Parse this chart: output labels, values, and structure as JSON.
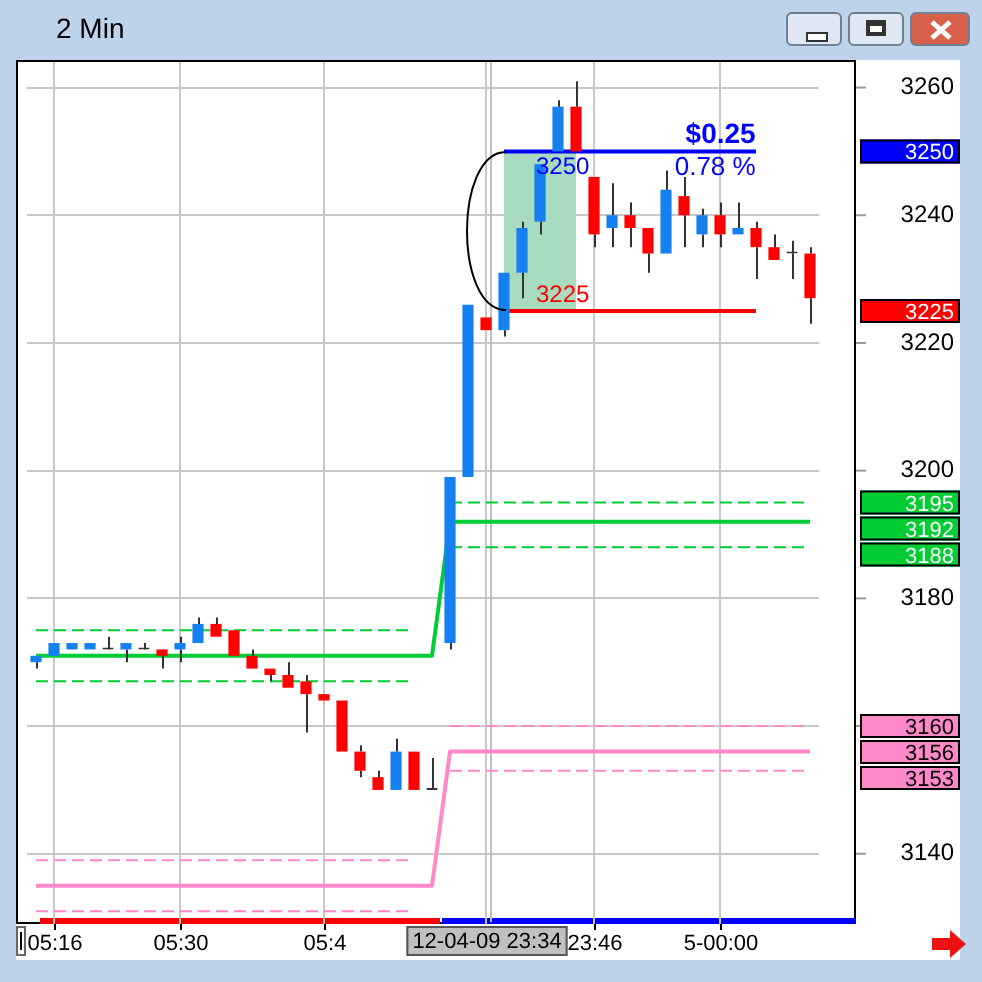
{
  "chart_data": {
    "type": "candlestick",
    "title": "2 Min",
    "categories": [
      null,
      "05:16",
      null,
      null,
      null,
      null,
      null,
      null,
      "05:30",
      null,
      null,
      null,
      null,
      null,
      null,
      null,
      "05:4",
      null,
      null,
      null,
      null,
      null,
      null,
      null,
      null,
      "12-04-09 23:34",
      null,
      null,
      null,
      null,
      null,
      "23:46",
      null,
      null,
      null,
      null,
      null,
      null,
      "5-00:00",
      null,
      null,
      null,
      null,
      null
    ],
    "ohlc": [
      [
        3170,
        3171,
        3169,
        3171
      ],
      [
        3171,
        3173,
        3171,
        3173
      ],
      [
        3172,
        3173,
        3172,
        3173
      ],
      [
        3172,
        3173,
        3172,
        3173
      ],
      [
        3172,
        3174,
        3172,
        3172
      ],
      [
        3172,
        3173,
        3170,
        3173
      ],
      [
        3172,
        3173,
        3172,
        3172
      ],
      [
        3172,
        3172,
        3169,
        3171
      ],
      [
        3172,
        3174,
        3170,
        3173
      ],
      [
        3173,
        3177,
        3173,
        3176
      ],
      [
        3176,
        3177,
        3174,
        3174
      ],
      [
        3175,
        3175,
        3171,
        3171
      ],
      [
        3171,
        3172,
        3169,
        3169
      ],
      [
        3169,
        3169,
        3167,
        3168
      ],
      [
        3168,
        3170,
        3166,
        3166
      ],
      [
        3167,
        3168,
        3159,
        3165
      ],
      [
        3165,
        3165,
        3164,
        3164
      ],
      [
        3164,
        3164,
        3156,
        3156
      ],
      [
        3156,
        3157,
        3152,
        3153
      ],
      [
        3152,
        3153,
        3150,
        3150
      ],
      [
        3150,
        3158,
        3150,
        3156
      ],
      [
        3156,
        3156,
        3150,
        3150
      ],
      [
        3150,
        3155,
        3150,
        3150
      ],
      [
        3173,
        3199,
        3172,
        3199
      ],
      [
        3199,
        3226,
        3199,
        3226
      ],
      [
        3224,
        3224,
        3222,
        3222
      ],
      [
        3222,
        3231,
        3221,
        3231
      ],
      [
        3231,
        3239,
        3227,
        3238
      ],
      [
        3239,
        3248,
        3237,
        3248
      ],
      [
        3250,
        3258,
        3250,
        3257
      ],
      [
        3257,
        3261,
        3250,
        3250
      ],
      [
        3246,
        3246,
        3235,
        3237
      ],
      [
        3238,
        3245,
        3235,
        3240
      ],
      [
        3240,
        3242,
        3235,
        3238
      ],
      [
        3238,
        3238,
        3231,
        3234
      ],
      [
        3234,
        3247,
        3234,
        3244
      ],
      [
        3243,
        3246,
        3235,
        3240
      ],
      [
        3237,
        3241,
        3235,
        3240
      ],
      [
        3240,
        3242,
        3235,
        3237
      ],
      [
        3237,
        3242,
        3237,
        3238
      ],
      [
        3238,
        3239,
        3230,
        3235
      ],
      [
        3235,
        3237,
        3233,
        3233
      ],
      [
        3234,
        3236,
        3230,
        3234
      ],
      [
        3234,
        3235,
        3223,
        3227
      ]
    ],
    "series": [
      {
        "type": "line",
        "color": "#00cc33",
        "line_style": "dashed",
        "values": [
          3175,
          3175,
          3175,
          3175,
          3175,
          3175,
          3175,
          3175,
          3175,
          3175,
          3175,
          3175,
          3175,
          3175,
          3175,
          3175,
          3175,
          3175,
          3175,
          3175,
          3175,
          3175,
          null,
          3195,
          3195,
          3195,
          3195,
          3195,
          3195,
          3195,
          3195,
          3195,
          3195,
          3195,
          3195,
          3195,
          3195,
          3195,
          3195,
          3195,
          3195,
          3195,
          3195,
          3195
        ]
      },
      {
        "type": "line",
        "color": "#00cc33",
        "line_style": "solid",
        "values": [
          3171,
          3171,
          3171,
          3171,
          3171,
          3171,
          3171,
          3171,
          3171,
          3171,
          3171,
          3171,
          3171,
          3171,
          3171,
          3171,
          3171,
          3171,
          3171,
          3171,
          3171,
          3171,
          3171,
          3192,
          3192,
          3192,
          3192,
          3192,
          3192,
          3192,
          3192,
          3192,
          3192,
          3192,
          3192,
          3192,
          3192,
          3192,
          3192,
          3192,
          3192,
          3192,
          3192,
          3192
        ]
      },
      {
        "type": "line",
        "color": "#00cc33",
        "line_style": "dashed",
        "values": [
          3167,
          3167,
          3167,
          3167,
          3167,
          3167,
          3167,
          3167,
          3167,
          3167,
          3167,
          3167,
          3167,
          3167,
          3167,
          3167,
          3167,
          3167,
          3167,
          3167,
          3167,
          3167,
          null,
          3188,
          3188,
          3188,
          3188,
          3188,
          3188,
          3188,
          3188,
          3188,
          3188,
          3188,
          3188,
          3188,
          3188,
          3188,
          3188,
          3188,
          3188,
          3188,
          3188,
          3188
        ]
      },
      {
        "type": "line",
        "color": "#ff88c8",
        "line_style": "dashed",
        "values": [
          3139,
          3139,
          3139,
          3139,
          3139,
          3139,
          3139,
          3139,
          3139,
          3139,
          3139,
          3139,
          3139,
          3139,
          3139,
          3139,
          3139,
          3139,
          3139,
          3139,
          3139,
          3139,
          null,
          3160,
          3160,
          3160,
          3160,
          3160,
          3160,
          3160,
          3160,
          3160,
          3160,
          3160,
          3160,
          3160,
          3160,
          3160,
          3160,
          3160,
          3160,
          3160,
          3160,
          3160
        ]
      },
      {
        "type": "line",
        "color": "#ff88c8",
        "line_style": "solid",
        "values": [
          3135,
          3135,
          3135,
          3135,
          3135,
          3135,
          3135,
          3135,
          3135,
          3135,
          3135,
          3135,
          3135,
          3135,
          3135,
          3135,
          3135,
          3135,
          3135,
          3135,
          3135,
          3135,
          3135,
          3156,
          3156,
          3156,
          3156,
          3156,
          3156,
          3156,
          3156,
          3156,
          3156,
          3156,
          3156,
          3156,
          3156,
          3156,
          3156,
          3156,
          3156,
          3156,
          3156,
          3156
        ]
      },
      {
        "type": "line",
        "color": "#ff88c8",
        "line_style": "dashed",
        "values": [
          3131,
          3131,
          3131,
          3131,
          3131,
          3131,
          3131,
          3131,
          3131,
          3131,
          3131,
          3131,
          3131,
          3131,
          3131,
          3131,
          3131,
          3131,
          3131,
          3131,
          3131,
          3131,
          null,
          3153,
          3153,
          3153,
          3153,
          3153,
          3153,
          3153,
          3153,
          3153,
          3153,
          3153,
          3153,
          3153,
          3153,
          3153,
          3153,
          3153,
          3153,
          3153,
          3153,
          3153
        ]
      },
      {
        "type": "line",
        "color": "#0000ff",
        "line_style": "solid",
        "values": [
          null,
          null,
          null,
          null,
          null,
          null,
          null,
          null,
          null,
          null,
          null,
          null,
          null,
          null,
          null,
          null,
          null,
          null,
          null,
          null,
          null,
          null,
          null,
          null,
          null,
          null,
          3250,
          3250,
          3250,
          3250,
          3250,
          3250,
          3250,
          3250,
          3250,
          3250,
          3250,
          3250,
          3250,
          3250,
          3250,
          null,
          null,
          null
        ],
        "value_labels": [
          null,
          null,
          null,
          null,
          null,
          null,
          null,
          null,
          null,
          null,
          null,
          null,
          null,
          null,
          null,
          null,
          null,
          null,
          null,
          null,
          null,
          null,
          null,
          null,
          null,
          null,
          "3250",
          null,
          null,
          null,
          null,
          null,
          null,
          null,
          null,
          null,
          null,
          null,
          null,
          null,
          null,
          null,
          null,
          null
        ]
      },
      {
        "type": "line",
        "color": "#ff0000",
        "line_style": "solid",
        "values": [
          null,
          null,
          null,
          null,
          null,
          null,
          null,
          null,
          null,
          null,
          null,
          null,
          null,
          null,
          null,
          null,
          null,
          null,
          null,
          null,
          null,
          null,
          null,
          null,
          null,
          null,
          3225,
          3225,
          3225,
          3225,
          3225,
          3225,
          3225,
          3225,
          3225,
          3225,
          3225,
          3225,
          3225,
          3225,
          3225,
          null,
          null,
          null
        ],
        "value_labels": [
          null,
          null,
          null,
          null,
          null,
          null,
          null,
          null,
          null,
          null,
          null,
          null,
          null,
          null,
          null,
          null,
          null,
          null,
          null,
          null,
          null,
          null,
          null,
          null,
          null,
          null,
          "3225",
          null,
          null,
          null,
          null,
          null,
          null,
          null,
          null,
          null,
          null,
          null,
          null,
          null,
          null,
          null,
          null,
          null
        ],
        "lower": [
          null,
          null,
          null,
          null,
          null,
          null,
          null,
          null,
          null,
          null,
          null,
          null,
          null,
          null,
          null,
          null,
          null,
          null,
          null,
          null,
          null,
          null,
          null,
          null,
          null,
          null,
          3225,
          3225,
          3225,
          3225,
          3225,
          null,
          null,
          null,
          null,
          null,
          null,
          null,
          null,
          null,
          null,
          null,
          null,
          null
        ],
        "upper": [
          null,
          null,
          null,
          null,
          null,
          null,
          null,
          null,
          null,
          null,
          null,
          null,
          null,
          null,
          null,
          null,
          null,
          null,
          null,
          null,
          null,
          null,
          null,
          null,
          null,
          null,
          3250,
          3250,
          3250,
          3250,
          3250,
          null,
          null,
          null,
          null,
          null,
          null,
          null,
          null,
          null,
          null,
          null,
          null,
          null
        ]
      }
    ],
    "annotations": [
      "$0.25",
      "0.78 %",
      "3195",
      "3192",
      "3188",
      "3160",
      "3156",
      "3153",
      "3250",
      "3225"
    ],
    "ref_lines": [
      {
        "axis": "x",
        "value": "12-04-09 23:34",
        "color": "#c0c0c0"
      }
    ],
    "ylim": [
      3129,
      3264
    ],
    "yticks": [
      3140,
      {
        "value": 3160,
        "label": null
      },
      3180,
      3200,
      3220,
      3240,
      3260
    ],
    "grid": true,
    "legend": false
  }
}
